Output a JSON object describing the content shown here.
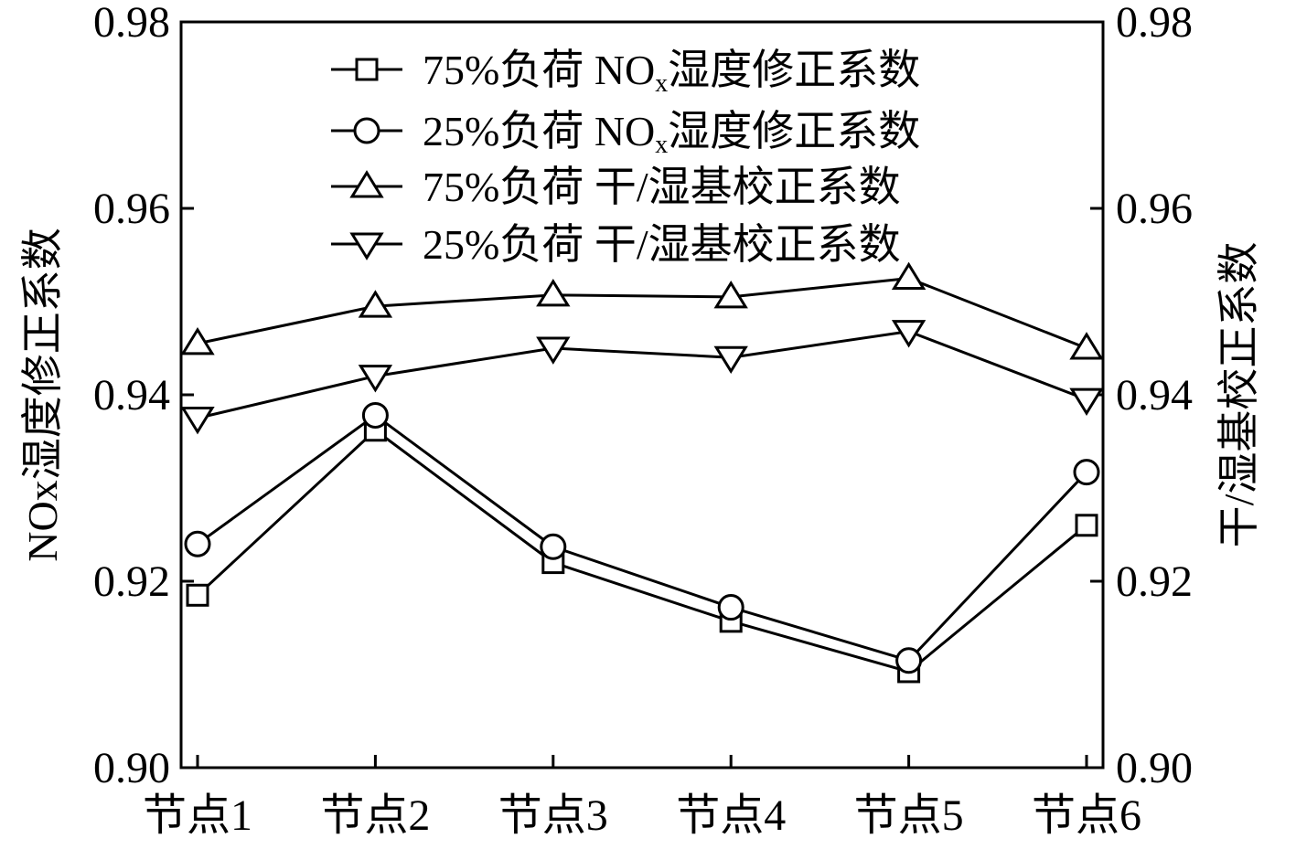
{
  "chart_data": {
    "type": "line",
    "categories": [
      "节点1",
      "节点2",
      "节点3",
      "节点4",
      "节点5",
      "节点6"
    ],
    "ylabel_left": "NOx湿度修正系数",
    "ylabel_right": "干/湿基校正系数",
    "ylim": [
      0.9,
      0.98
    ],
    "y_ticks": [
      "0.90",
      "0.92",
      "0.94",
      "0.96",
      "0.98"
    ],
    "y_ticks_right": [
      "0.90",
      "0.92",
      "0.94",
      "0.96",
      "0.98"
    ],
    "legend_position": "top-right",
    "series": [
      {
        "name": "75%负荷 NOx湿度修正系数",
        "marker": "square",
        "axis": "left",
        "values": [
          0.9185,
          0.9362,
          0.922,
          0.9157,
          0.9103,
          0.926
        ]
      },
      {
        "name": "25%负荷 NOx湿度修正系数",
        "marker": "circle",
        "axis": "left",
        "values": [
          0.924,
          0.9378,
          0.9237,
          0.9172,
          0.9115,
          0.9317
        ]
      },
      {
        "name": "75%负荷 干/湿基校正系数",
        "marker": "triangle-up",
        "axis": "right",
        "values": [
          0.9455,
          0.9495,
          0.9507,
          0.9505,
          0.9525,
          0.945
        ]
      },
      {
        "name": "25%负荷 干/湿基校正系数",
        "marker": "triangle-down",
        "axis": "right",
        "values": [
          0.9375,
          0.942,
          0.945,
          0.944,
          0.9468,
          0.9395
        ]
      }
    ]
  }
}
